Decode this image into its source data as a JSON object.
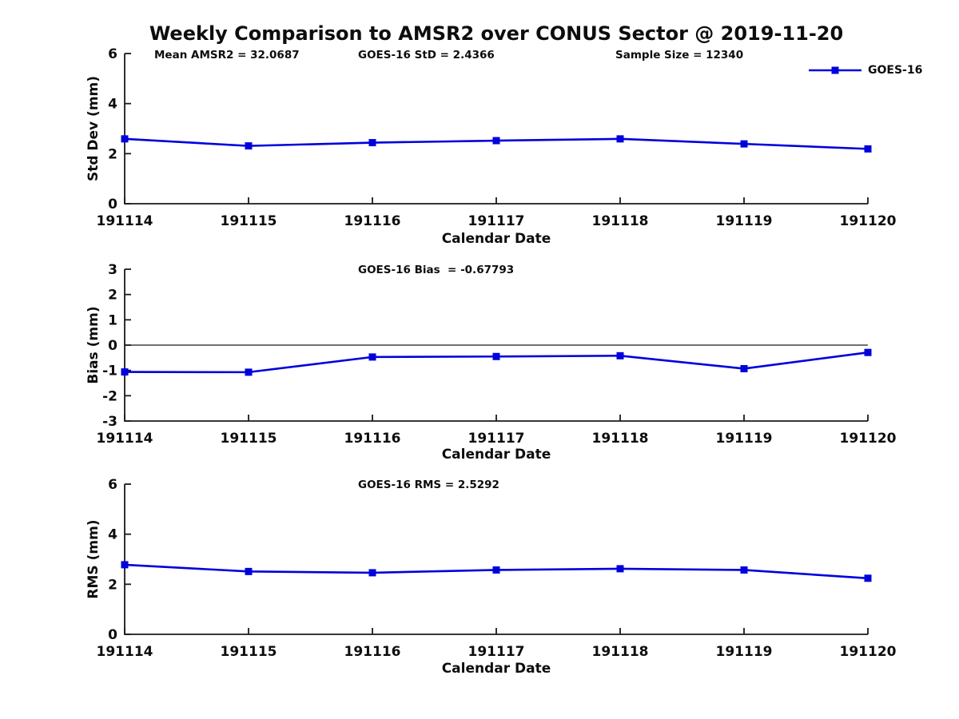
{
  "title": "Weekly Comparison to AMSR2 over CONUS Sector @ 2019-11-20",
  "colors": {
    "line": "#0000dd",
    "axis": "#1a1a1a",
    "text": "#0d0d0d"
  },
  "chart_data": [
    {
      "type": "line",
      "name": "std-dev-plot",
      "x": [
        "191114",
        "191115",
        "191116",
        "191117",
        "191118",
        "191119",
        "191120"
      ],
      "series": [
        {
          "name": "GOES-16",
          "marker": "square",
          "values": [
            2.59,
            2.31,
            2.44,
            2.52,
            2.59,
            2.39,
            2.19
          ]
        }
      ],
      "xlabel": "Calendar Date",
      "ylabel": "Std Dev (mm)",
      "ylim": [
        0,
        6
      ],
      "yticks": [
        0,
        2,
        4,
        6
      ],
      "grid": false,
      "annotations": [
        "Mean AMSR2 = 32.0687",
        "GOES-16 StD = 2.4366",
        "Sample Size = 12340"
      ],
      "legend": {
        "position": "top-right",
        "label": "GOES-16"
      }
    },
    {
      "type": "line",
      "name": "bias-plot",
      "x": [
        "191114",
        "191115",
        "191116",
        "191117",
        "191118",
        "191119",
        "191120"
      ],
      "series": [
        {
          "name": "GOES-16",
          "marker": "square",
          "values": [
            -1.06,
            -1.07,
            -0.47,
            -0.45,
            -0.42,
            -0.93,
            -0.29
          ]
        }
      ],
      "xlabel": "Calendar Date",
      "ylabel": "Bias (mm)",
      "ylim": [
        -3,
        3
      ],
      "yticks": [
        3,
        2,
        1,
        0,
        -1,
        -2,
        -3
      ],
      "zero_line": true,
      "grid": false,
      "annotations": [
        "GOES-16 Bias  = -0.67793"
      ]
    },
    {
      "type": "line",
      "name": "rms-plot",
      "x": [
        "191114",
        "191115",
        "191116",
        "191117",
        "191118",
        "191119",
        "191120"
      ],
      "series": [
        {
          "name": "GOES-16",
          "marker": "square",
          "values": [
            2.78,
            2.51,
            2.46,
            2.57,
            2.62,
            2.57,
            2.24
          ]
        }
      ],
      "xlabel": "Calendar Date",
      "ylabel": "RMS (mm)",
      "ylim": [
        0,
        6
      ],
      "yticks": [
        0,
        2,
        4,
        6
      ],
      "grid": false,
      "annotations": [
        "GOES-16 RMS = 2.5292"
      ]
    }
  ]
}
